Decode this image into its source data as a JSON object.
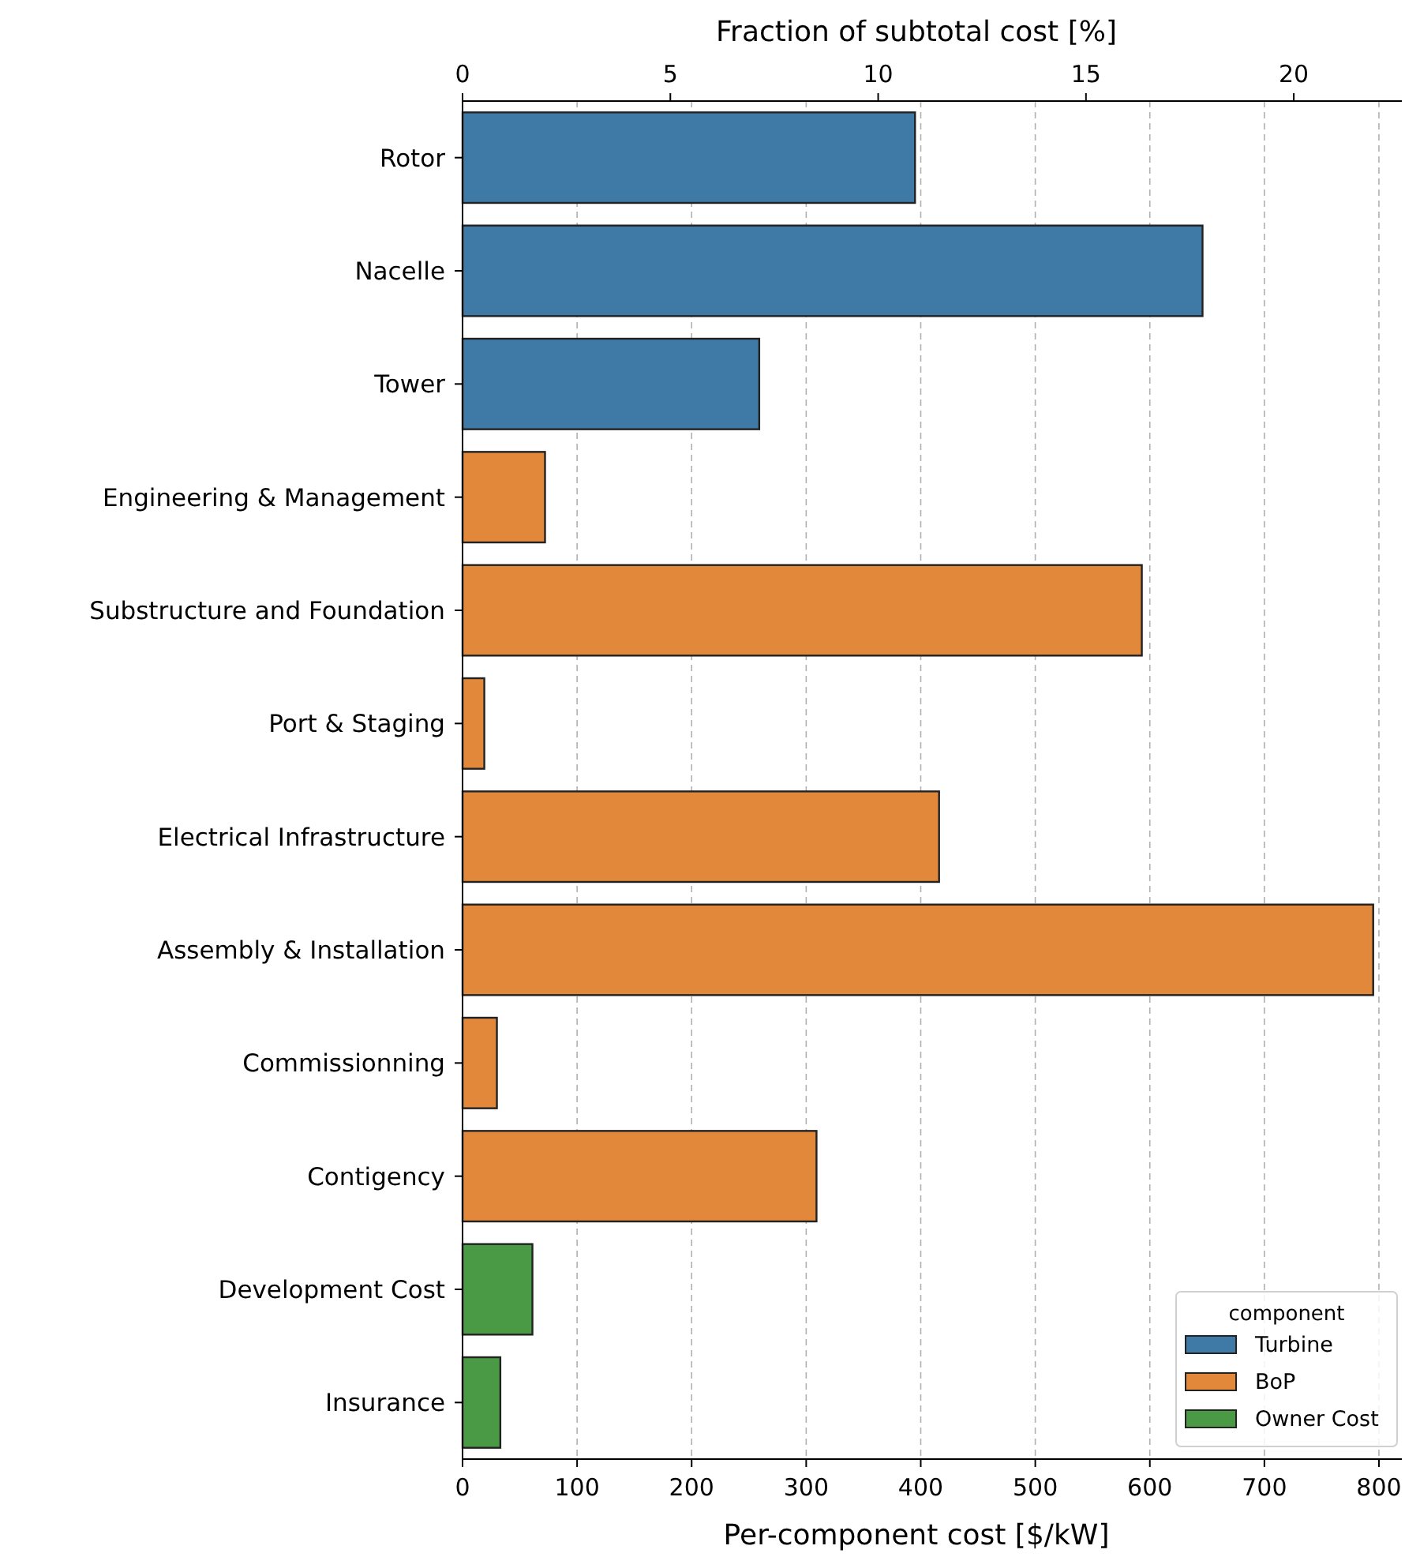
{
  "chart_data": {
    "type": "bar",
    "orientation": "horizontal",
    "xlabel": "Per-component cost [$/kW]",
    "x2label": "Fraction of subtotal cost [%]",
    "legend_title": "component",
    "categories": [
      "Rotor",
      "Nacelle",
      "Tower",
      "Engineering & Management",
      "Substructure and Foundation",
      "Port & Staging",
      "Electrical Infrastructure",
      "Assembly & Installation",
      "Commissionning",
      "Contigency",
      "Development Cost",
      "Insurance"
    ],
    "series": [
      {
        "name": "Turbine",
        "color": "#3e7aa5",
        "values": [
          395,
          646,
          259,
          null,
          null,
          null,
          null,
          null,
          null,
          null,
          null,
          null
        ]
      },
      {
        "name": "BoP",
        "color": "#e1883a",
        "values": [
          null,
          null,
          null,
          72,
          593,
          19,
          416,
          795,
          30,
          309,
          null,
          null
        ]
      },
      {
        "name": "Owner Cost",
        "color": "#4a9a45",
        "values": [
          null,
          null,
          null,
          null,
          null,
          null,
          null,
          null,
          null,
          null,
          61,
          33
        ]
      }
    ],
    "xlim": [
      0,
      820
    ],
    "xticks": [
      0,
      100,
      200,
      300,
      400,
      500,
      600,
      700,
      800
    ],
    "x2lim": [
      0,
      22.6
    ],
    "x2ticks": [
      0,
      5,
      10,
      15,
      20
    ],
    "grid": "x",
    "legend": "bottom right"
  }
}
